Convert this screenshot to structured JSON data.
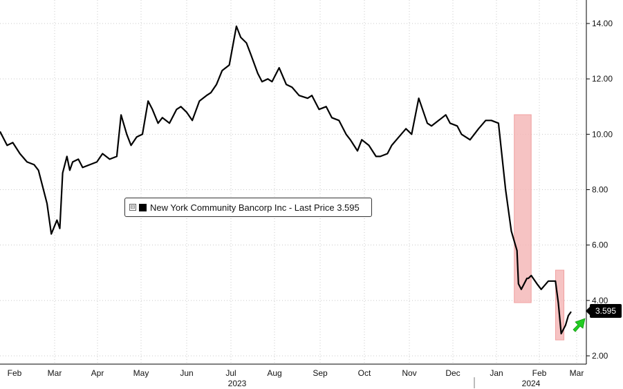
{
  "chart_data": {
    "type": "line",
    "title": "",
    "xlabel": "",
    "ylabel": "",
    "ylim": [
      2,
      15
    ],
    "y_ticks": [
      "2.00",
      "4.00",
      "6.00",
      "8.00",
      "10.00",
      "12.00",
      "14.00"
    ],
    "x_ticks": [
      "Feb",
      "Mar",
      "Apr",
      "May",
      "Jun",
      "Jul",
      "Aug",
      "Sep",
      "Oct",
      "Nov",
      "Dec",
      "Jan",
      "Feb",
      "Mar"
    ],
    "year_labels": [
      "2023",
      "2024"
    ],
    "grid": true,
    "legend": "center-left",
    "series": [
      {
        "name": "New York Community Bancorp Inc - Last Price 3.595",
        "color": "#000000",
        "x": [
          "2023-02-01",
          "2023-02-06",
          "2023-02-10",
          "2023-02-15",
          "2023-02-20",
          "2023-02-25",
          "2023-02-28",
          "2023-03-06",
          "2023-03-09",
          "2023-03-13",
          "2023-03-15",
          "2023-03-17",
          "2023-03-20",
          "2023-03-22",
          "2023-03-24",
          "2023-03-28",
          "2023-03-31",
          "2023-04-05",
          "2023-04-10",
          "2023-04-14",
          "2023-04-19",
          "2023-04-24",
          "2023-04-27",
          "2023-05-01",
          "2023-05-04",
          "2023-05-08",
          "2023-05-12",
          "2023-05-16",
          "2023-05-19",
          "2023-05-23",
          "2023-05-26",
          "2023-05-31",
          "2023-06-05",
          "2023-06-08",
          "2023-06-12",
          "2023-06-16",
          "2023-06-21",
          "2023-06-26",
          "2023-06-29",
          "2023-07-03",
          "2023-07-07",
          "2023-07-12",
          "2023-07-17",
          "2023-07-20",
          "2023-07-24",
          "2023-07-27",
          "2023-08-01",
          "2023-08-04",
          "2023-08-08",
          "2023-08-11",
          "2023-08-16",
          "2023-08-21",
          "2023-08-25",
          "2023-08-30",
          "2023-09-05",
          "2023-09-08",
          "2023-09-13",
          "2023-09-18",
          "2023-09-22",
          "2023-09-27",
          "2023-10-02",
          "2023-10-05",
          "2023-10-10",
          "2023-10-13",
          "2023-10-18",
          "2023-10-23",
          "2023-10-26",
          "2023-10-31",
          "2023-11-03",
          "2023-11-08",
          "2023-11-13",
          "2023-11-17",
          "2023-11-22",
          "2023-11-28",
          "2023-12-01",
          "2023-12-06",
          "2023-12-11",
          "2023-12-14",
          "2023-12-19",
          "2023-12-22",
          "2023-12-28",
          "2024-01-03",
          "2024-01-08",
          "2024-01-12",
          "2024-01-17",
          "2024-01-22",
          "2024-01-26",
          "2024-01-30",
          "2024-01-31",
          "2024-02-02",
          "2024-02-06",
          "2024-02-07",
          "2024-02-09",
          "2024-02-13",
          "2024-02-16",
          "2024-02-21",
          "2024-02-26",
          "2024-02-28",
          "2024-03-01",
          "2024-03-04",
          "2024-03-06",
          "2024-03-08"
        ],
        "values": [
          10.1,
          9.6,
          9.7,
          9.3,
          9.0,
          8.9,
          8.7,
          7.5,
          6.4,
          6.9,
          6.6,
          8.6,
          9.2,
          8.7,
          9.0,
          9.1,
          8.8,
          8.9,
          9.0,
          9.3,
          9.1,
          9.2,
          10.7,
          10.0,
          9.6,
          9.9,
          10.0,
          11.2,
          10.9,
          10.4,
          10.6,
          10.4,
          10.9,
          11.0,
          10.8,
          10.5,
          11.2,
          11.4,
          11.5,
          11.8,
          12.3,
          12.5,
          13.9,
          13.5,
          13.3,
          12.9,
          12.2,
          11.9,
          12.0,
          11.9,
          12.4,
          11.8,
          11.7,
          11.4,
          11.3,
          11.4,
          10.9,
          11.0,
          10.6,
          10.5,
          10.0,
          9.8,
          9.4,
          9.8,
          9.6,
          9.2,
          9.2,
          9.3,
          9.6,
          9.9,
          10.2,
          10.0,
          11.3,
          10.4,
          10.3,
          10.5,
          10.7,
          10.4,
          10.3,
          10.0,
          9.8,
          10.2,
          10.5,
          10.5,
          10.4,
          8.0,
          6.5,
          5.8,
          4.6,
          4.4,
          4.8,
          4.8,
          4.9,
          4.6,
          4.4,
          4.7,
          4.7,
          3.9,
          2.8,
          3.1,
          3.45,
          3.595
        ]
      }
    ],
    "highlights": [
      {
        "from": "2024-01-30",
        "to": "2024-02-07",
        "color": "#f4b8b8"
      },
      {
        "from": "2024-02-28",
        "to": "2024-03-01",
        "color": "#f4b8b8"
      }
    ],
    "last_price_label": "3.595",
    "arrow_color": "#22cc22"
  },
  "legend": {
    "toggle": "⊟",
    "label": "New York Community Bancorp Inc - Last Price 3.595"
  }
}
